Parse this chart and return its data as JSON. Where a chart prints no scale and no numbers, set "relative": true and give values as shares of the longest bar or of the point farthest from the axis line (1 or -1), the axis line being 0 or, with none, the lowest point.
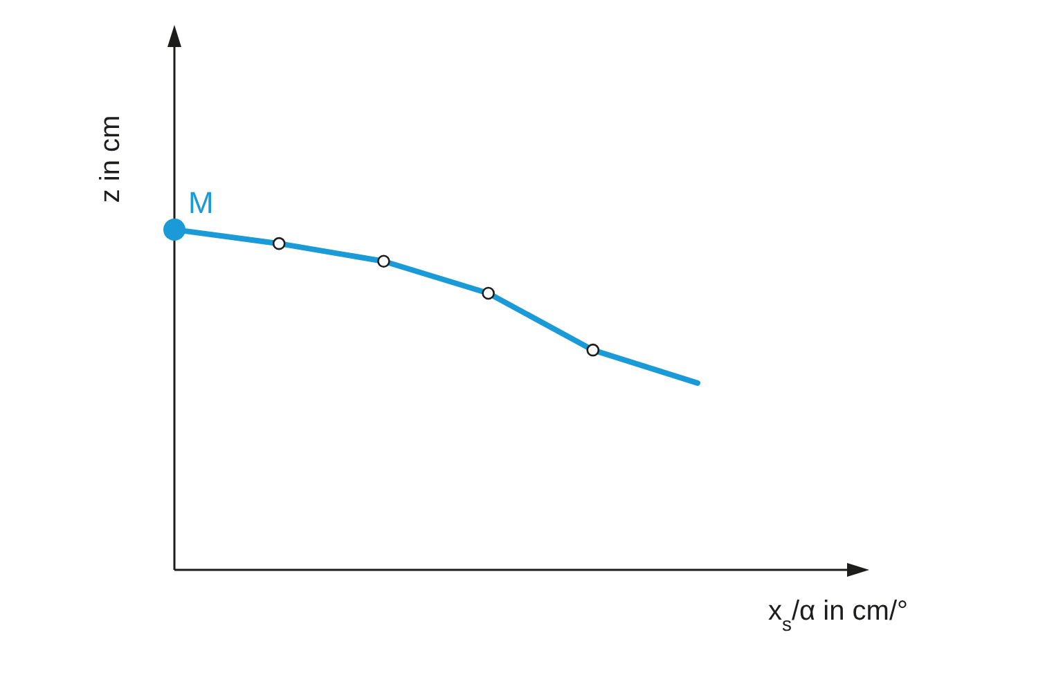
{
  "chart_data": {
    "type": "line",
    "relative": true,
    "xlabel": "x$_{s}$/α in cm/°",
    "ylabel": "z in cm",
    "legend": false,
    "grid": false,
    "tick_labels": false,
    "marker": "circle",
    "annotations": [
      "M"
    ],
    "categories": [
      null,
      null,
      null,
      null,
      null,
      null
    ],
    "series": [
      {
        "color": "#1a9ad6",
        "values": [
          1,
          0.959,
          0.907,
          0.813,
          0.646,
          0.549
        ]
      }
    ]
  }
}
